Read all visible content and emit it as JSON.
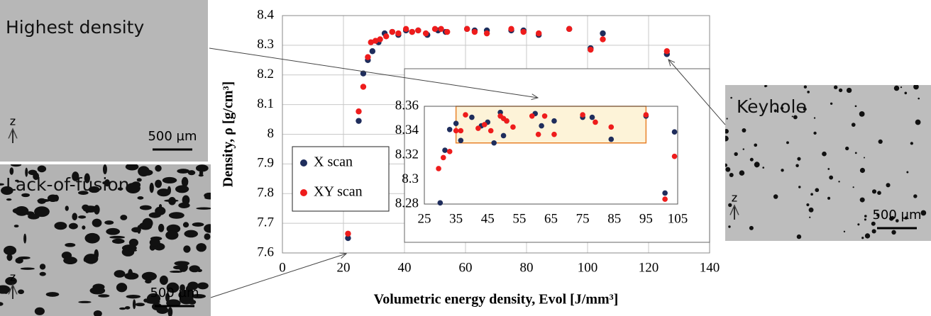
{
  "panels": {
    "top_left": {
      "label": "Highest density",
      "axis": "z",
      "scale": "500 µm"
    },
    "bottom_left": {
      "label": "Lack-of-fusion",
      "axis": "z",
      "scale": "500 µm"
    },
    "right": {
      "label": "Keyhole",
      "axis": "z",
      "scale": "500 µm"
    }
  },
  "chart_data": [
    {
      "type": "scatter",
      "x_label": "Volumetric energy density, Evol [J/mm³]",
      "y_label": "Density, ρ [g/cm³]",
      "xlim": [
        0,
        140
      ],
      "xticks": [
        0,
        20,
        40,
        60,
        80,
        100,
        120,
        140
      ],
      "ylim": [
        7.6,
        8.4
      ],
      "yticks": [
        7.6,
        7.7,
        7.8,
        7.9,
        8,
        8.1,
        8.2,
        8.3,
        8.4
      ],
      "grid": true,
      "legend": "lower left",
      "series": [
        {
          "name": "X scan",
          "color": "#1f2d5c",
          "x": [
            21.5,
            25,
            26.5,
            28,
            29.5,
            31.5,
            33.5,
            36,
            38,
            40.5,
            42.5,
            44.5,
            47.5,
            51,
            53.5,
            60.5,
            63,
            67,
            75,
            79,
            84,
            94,
            101,
            105,
            126
          ],
          "values": [
            7.65,
            8.045,
            8.205,
            8.25,
            8.28,
            8.31,
            8.34,
            8.345,
            8.335,
            8.35,
            8.345,
            8.35,
            8.335,
            8.35,
            8.345,
            8.355,
            8.35,
            8.35,
            8.35,
            8.35,
            8.335,
            8.355,
            8.29,
            8.34,
            8.27
          ]
        },
        {
          "name": "XY scan",
          "color": "#ee1c1c",
          "x": [
            21.5,
            25,
            26.5,
            28,
            29,
            30.5,
            32,
            34,
            36,
            38,
            40.5,
            42.5,
            44.5,
            47,
            50,
            52,
            54,
            60.5,
            63,
            67,
            75,
            79,
            84,
            94,
            101,
            105,
            126
          ],
          "values": [
            7.665,
            8.077,
            8.16,
            8.26,
            8.31,
            8.315,
            8.32,
            8.33,
            8.345,
            8.34,
            8.355,
            8.345,
            8.35,
            8.34,
            8.355,
            8.355,
            8.345,
            8.355,
            8.345,
            8.34,
            8.355,
            8.345,
            8.34,
            8.355,
            8.285,
            8.32,
            8.28
          ]
        }
      ]
    },
    {
      "type": "scatter",
      "xlim": [
        25,
        105
      ],
      "xticks": [
        25,
        35,
        45,
        55,
        65,
        75,
        85,
        95,
        105
      ],
      "ylim": [
        8.28,
        8.36
      ],
      "yticks": [
        8.28,
        8.3,
        8.32,
        8.34,
        8.36
      ],
      "highlight": {
        "x": [
          35,
          95
        ],
        "y": [
          8.33,
          8.36
        ]
      },
      "series": [
        {
          "color": "#1f2d5c",
          "x": [
            30,
            31.5,
            33,
            35,
            36.5,
            40,
            43,
            45,
            47,
            49,
            50,
            51,
            60,
            62,
            66,
            75,
            78,
            84,
            95,
            101,
            104
          ],
          "values": [
            8.281,
            8.324,
            8.341,
            8.346,
            8.332,
            8.351,
            8.344,
            8.347,
            8.33,
            8.355,
            8.336,
            8.348,
            8.354,
            8.344,
            8.348,
            8.351,
            8.351,
            8.333,
            8.352,
            8.289,
            8.339
          ]
        },
        {
          "color": "#ee1c1c",
          "x": [
            29.5,
            31,
            33,
            35,
            36.5,
            38,
            42,
            44,
            46,
            49,
            50,
            51,
            53,
            59,
            61,
            63,
            66,
            75,
            79,
            84,
            95,
            101,
            104
          ],
          "values": [
            8.309,
            8.318,
            8.323,
            8.34,
            8.34,
            8.353,
            8.342,
            8.345,
            8.34,
            8.352,
            8.35,
            8.348,
            8.343,
            8.352,
            8.337,
            8.352,
            8.337,
            8.353,
            8.347,
            8.343,
            8.353,
            8.284,
            8.319
          ]
        }
      ]
    }
  ]
}
